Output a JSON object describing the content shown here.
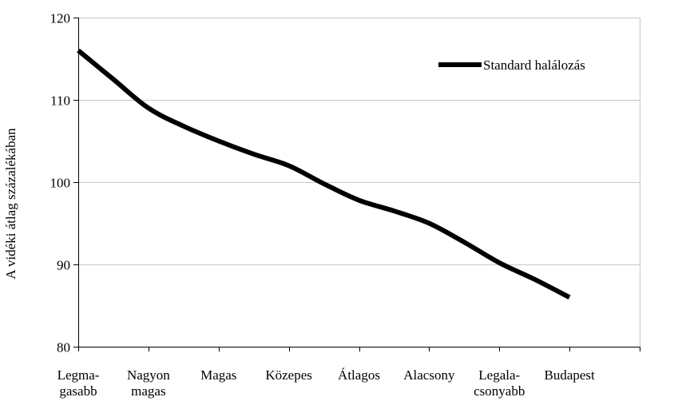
{
  "chart_data": {
    "type": "line",
    "categories": [
      [
        "Legma-",
        "gasabb"
      ],
      [
        "Nagyon",
        "magas"
      ],
      [
        "Magas"
      ],
      [
        "Közepes"
      ],
      [
        "Átlagos"
      ],
      [
        "Alacsony"
      ],
      [
        "Legala-",
        "csonyabb"
      ],
      [
        "Budapest"
      ]
    ],
    "x": [
      0,
      0.5,
      1,
      1.5,
      2,
      2.5,
      3,
      3.5,
      4,
      4.5,
      5,
      5.5,
      6,
      6.5,
      7
    ],
    "series": [
      {
        "name": "Standard halálozás",
        "color": "#000000",
        "values": [
          116,
          112.5,
          109,
          106.8,
          105,
          103.4,
          102,
          99.8,
          97.8,
          96.5,
          95,
          92.7,
          90.2,
          88.2,
          86
        ]
      }
    ],
    "ylabel": "A vidéki átlag százalékában",
    "xlabel": "",
    "ylim": [
      80,
      120
    ],
    "yticks": [
      80,
      90,
      100,
      110,
      120
    ],
    "grid": true,
    "legend_position": "top-right"
  }
}
